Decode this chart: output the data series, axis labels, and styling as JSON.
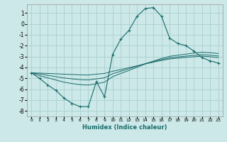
{
  "xlabel": "Humidex (Indice chaleur)",
  "background_color": "#cce8e8",
  "grid_color": "#aacfcf",
  "line_color": "#1a6b6b",
  "x_ticks": [
    0,
    1,
    2,
    3,
    4,
    5,
    6,
    7,
    8,
    9,
    10,
    11,
    12,
    13,
    14,
    15,
    16,
    17,
    18,
    19,
    20,
    21,
    22,
    23
  ],
  "y_ticks": [
    -8,
    -7,
    -6,
    -5,
    -4,
    -3,
    -2,
    -1,
    0,
    1
  ],
  "ylim": [
    -8.5,
    1.8
  ],
  "xlim": [
    -0.5,
    23.5
  ],
  "series": [
    {
      "x": [
        0,
        1,
        2,
        3,
        4,
        5,
        6,
        7,
        8,
        9,
        10,
        11,
        12,
        13,
        14,
        15,
        16,
        17,
        18,
        19,
        20,
        21,
        22,
        23
      ],
      "y": [
        -4.5,
        -5.0,
        -5.6,
        -6.1,
        -6.8,
        -7.3,
        -7.6,
        -7.6,
        -5.3,
        -6.7,
        -2.8,
        -1.4,
        -0.6,
        0.7,
        1.4,
        1.5,
        0.7,
        -1.3,
        -1.8,
        -2.0,
        -2.5,
        -3.1,
        -3.4,
        -3.6
      ],
      "marker": "+"
    },
    {
      "x": [
        0,
        1,
        2,
        3,
        4,
        5,
        6,
        7,
        8,
        9,
        10,
        11,
        12,
        13,
        14,
        15,
        16,
        17,
        18,
        19,
        20,
        21,
        22,
        23
      ],
      "y": [
        -4.5,
        -4.75,
        -4.95,
        -5.15,
        -5.35,
        -5.48,
        -5.58,
        -5.62,
        -5.5,
        -5.35,
        -4.85,
        -4.55,
        -4.28,
        -3.98,
        -3.68,
        -3.42,
        -3.18,
        -2.98,
        -2.88,
        -2.78,
        -2.68,
        -2.6,
        -2.65,
        -2.72
      ],
      "marker": null
    },
    {
      "x": [
        0,
        1,
        2,
        3,
        4,
        5,
        6,
        7,
        8,
        9,
        10,
        11,
        12,
        13,
        14,
        15,
        16,
        17,
        18,
        19,
        20,
        21,
        22,
        23
      ],
      "y": [
        -4.5,
        -4.6,
        -4.72,
        -4.84,
        -4.96,
        -5.05,
        -5.12,
        -5.15,
        -5.05,
        -4.95,
        -4.58,
        -4.35,
        -4.12,
        -3.88,
        -3.65,
        -3.46,
        -3.28,
        -3.12,
        -3.04,
        -2.96,
        -2.9,
        -2.82,
        -2.88,
        -2.95
      ],
      "marker": null
    },
    {
      "x": [
        0,
        1,
        2,
        3,
        4,
        5,
        6,
        7,
        8,
        9,
        10,
        11,
        12,
        13,
        14,
        15,
        16,
        17,
        18,
        19,
        20,
        21,
        22,
        23
      ],
      "y": [
        -4.5,
        -4.52,
        -4.55,
        -4.58,
        -4.62,
        -4.65,
        -4.68,
        -4.7,
        -4.62,
        -4.55,
        -4.35,
        -4.2,
        -4.02,
        -3.85,
        -3.68,
        -3.52,
        -3.36,
        -3.22,
        -3.15,
        -3.08,
        -3.02,
        -2.96,
        -3.02,
        -3.1
      ],
      "marker": null
    }
  ]
}
